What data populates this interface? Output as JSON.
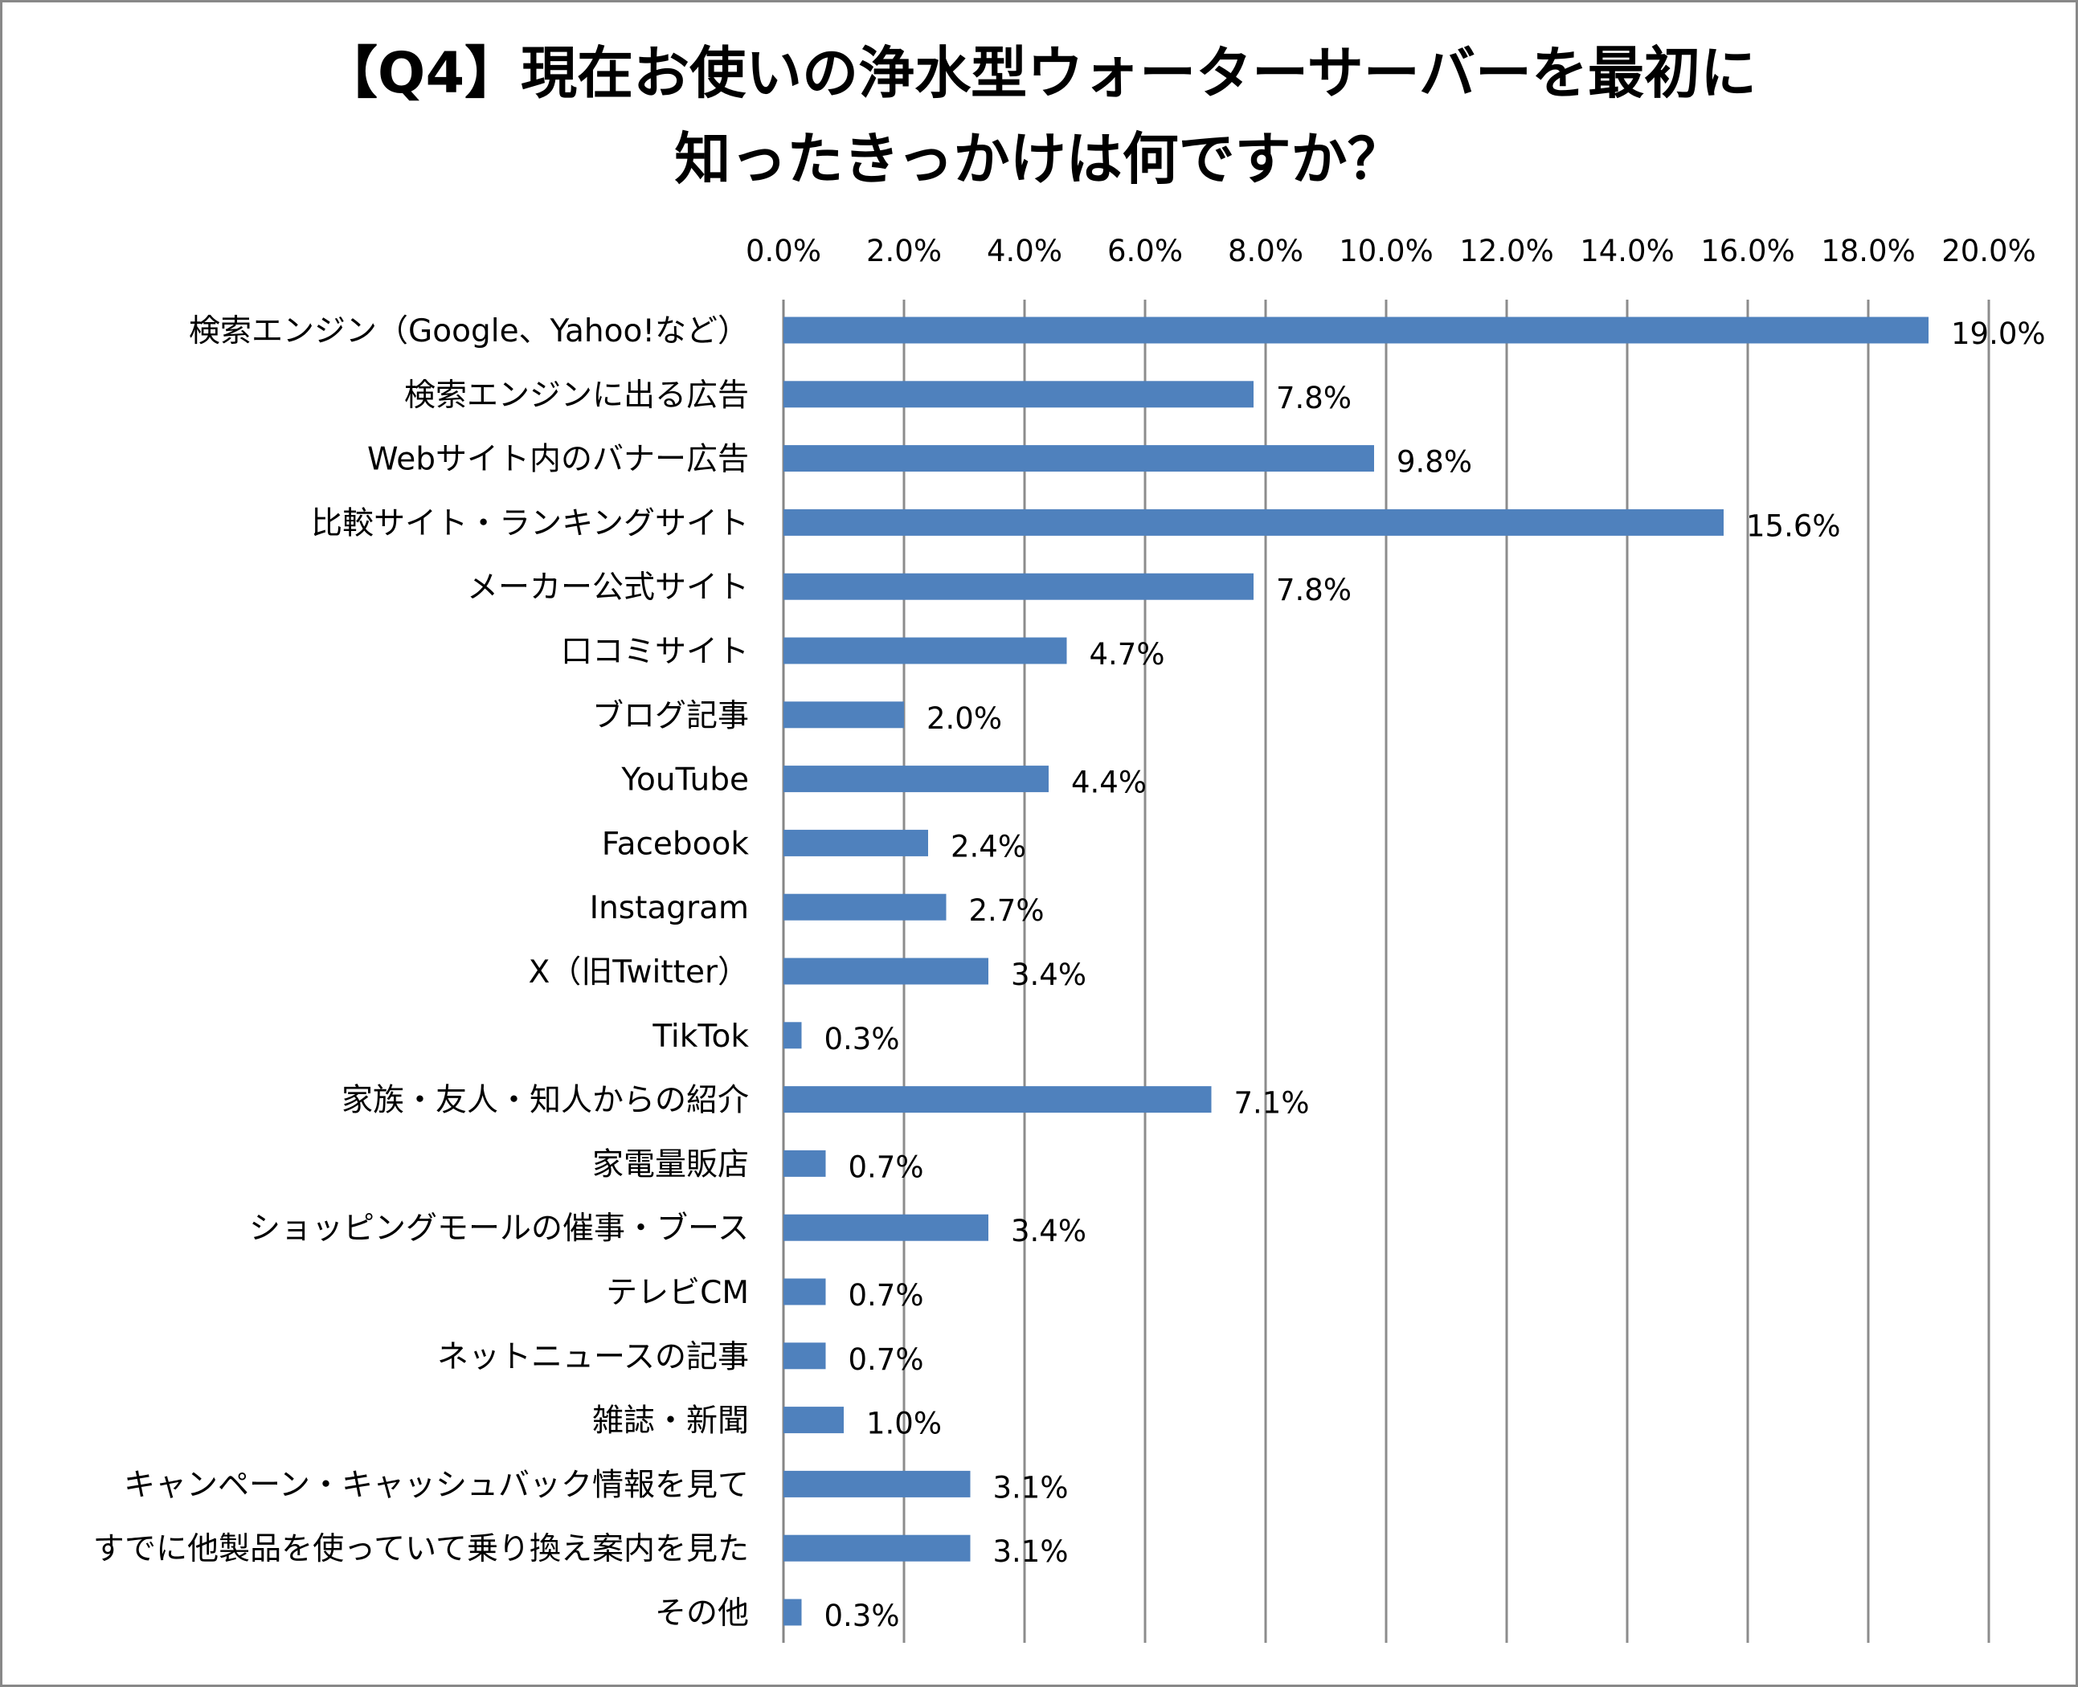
{
  "chart_data": {
    "type": "bar",
    "orientation": "horizontal",
    "title": [
      "【Q4】現在お使いの浄水型ウォーターサーバーを最初に",
      "知ったきっかけは何ですか？"
    ],
    "xlim": [
      0,
      20
    ],
    "xticks": [
      "0.0%",
      "2.0%",
      "4.0%",
      "6.0%",
      "8.0%",
      "10.0%",
      "12.0%",
      "14.0%",
      "16.0%",
      "18.0%",
      "20.0%"
    ],
    "grid": "vertical",
    "bar_color": "#4F81BD",
    "categories": [
      "検索エンジン（Google、Yahoo!など）",
      "検索エンジンに出る広告",
      "Webサイト内のバナー広告",
      "比較サイト・ランキングサイト",
      "メーカー公式サイト",
      "口コミサイト",
      "ブログ記事",
      "YouTube",
      "Facebook",
      "Instagram",
      "X（旧Twitter）",
      "TikTok",
      "家族・友人・知人からの紹介",
      "家電量販店",
      "ショッピングモールの催事・ブース",
      "テレビCM",
      "ネットニュースの記事",
      "雑誌・新聞",
      "キャンペーン・キャッシュバック情報を見て",
      "すでに他製品を使っていて乗り換え案内を見た",
      "その他"
    ],
    "values": [
      19.0,
      7.8,
      9.8,
      15.6,
      7.8,
      4.7,
      2.0,
      4.4,
      2.4,
      2.7,
      3.4,
      0.3,
      7.1,
      0.7,
      3.4,
      0.7,
      0.7,
      1.0,
      3.1,
      3.1,
      0.3
    ],
    "value_labels": [
      "19.0%",
      "7.8%",
      "9.8%",
      "15.6%",
      "7.8%",
      "4.7%",
      "2.0%",
      "4.4%",
      "2.4%",
      "2.7%",
      "3.4%",
      "0.3%",
      "7.1%",
      "0.7%",
      "3.4%",
      "0.7%",
      "0.7%",
      "1.0%",
      "3.1%",
      "3.1%",
      "0.3%"
    ]
  }
}
